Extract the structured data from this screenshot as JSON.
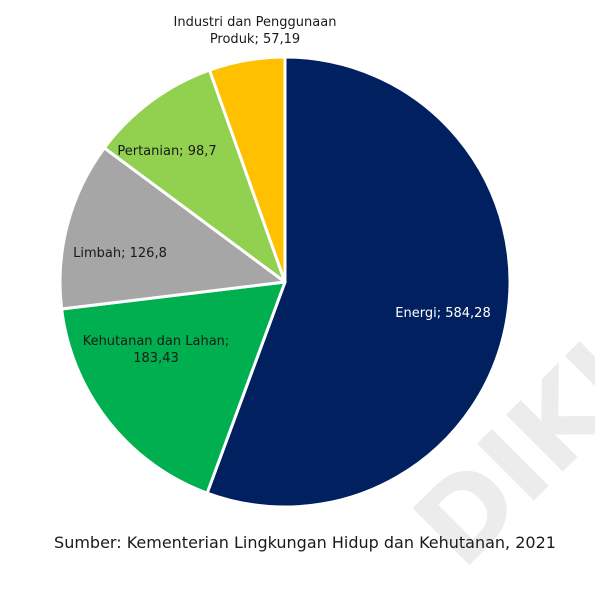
{
  "chart_data": {
    "type": "pie",
    "slices": [
      {
        "name": "Energi",
        "value": 584.28,
        "label": "Energi; 584,28",
        "color": "#002060"
      },
      {
        "name": "Kehutanan dan Lahan",
        "value": 183.43,
        "label": "Kehutanan dan Lahan; 183,43",
        "color": "#00B050"
      },
      {
        "name": "Limbah",
        "value": 126.8,
        "label": "Limbah; 126,8",
        "color": "#A6A6A6"
      },
      {
        "name": "Pertanian",
        "value": 98.7,
        "label": "Pertanian; 98,7",
        "color": "#92D050"
      },
      {
        "name": "Industri dan Penggunaan Produk",
        "value": 57.19,
        "label": "Industri dan Penggunaan Produk; 57,19",
        "color": "#FFC000"
      }
    ],
    "label_lines": [
      [
        "Energi; 584,28"
      ],
      [
        "Kehutanan dan Lahan;",
        "183,43"
      ],
      [
        "Limbah; 126,8"
      ],
      [
        "Pertanian; 98,7"
      ],
      [
        "Industri dan Penggunaan",
        "Produk; 57,19"
      ]
    ],
    "start_angle": "12 o'clock",
    "direction": "clockwise",
    "legend": "none"
  },
  "source_note": "Sumber: Kementerian Lingkungan Hidup dan Kehutanan, 2021",
  "watermark": "DIKUTIP"
}
